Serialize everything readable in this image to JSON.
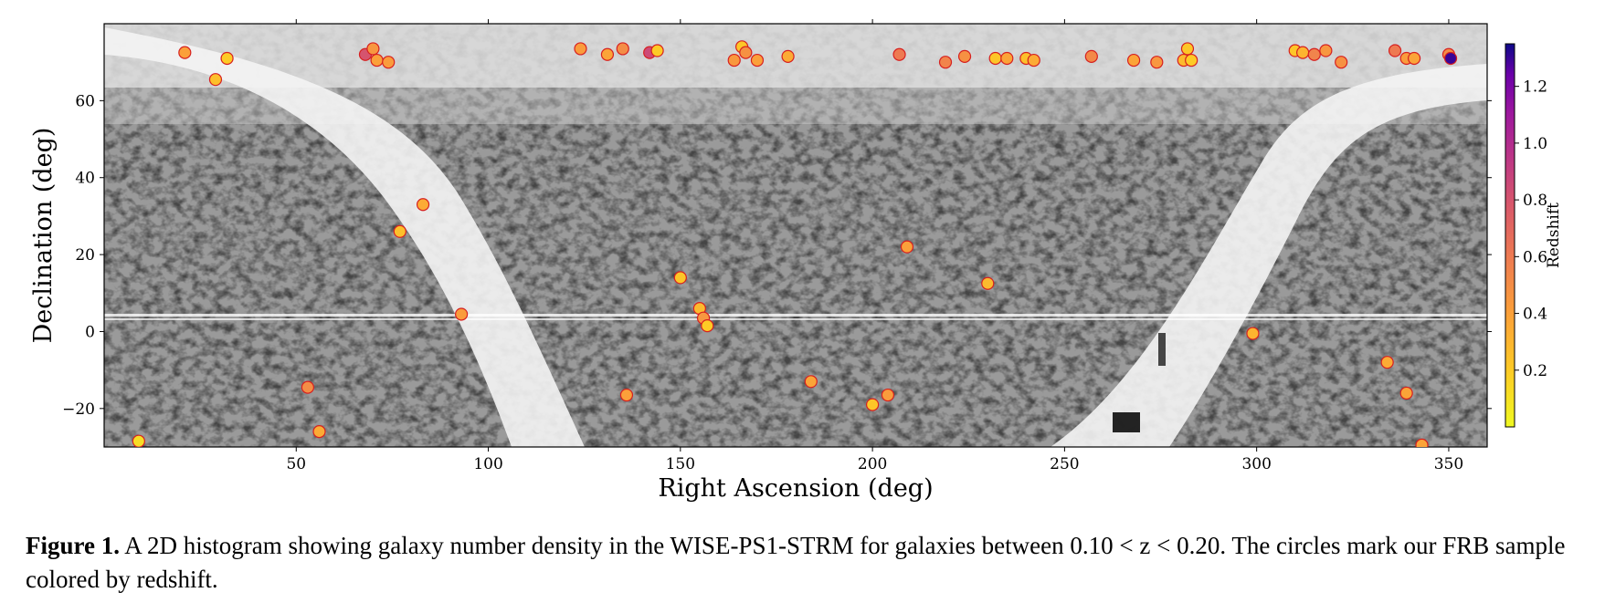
{
  "chart_data": {
    "type": "scatter",
    "title": "",
    "xlabel": "Right Ascension (deg)",
    "ylabel": "Declination (deg)",
    "xlim": [
      0,
      360
    ],
    "ylim": [
      -30,
      80
    ],
    "xticks": [
      50,
      100,
      150,
      200,
      250,
      300,
      350
    ],
    "xtick_labels": [
      "50",
      "100",
      "150",
      "200",
      "250",
      "300",
      "350"
    ],
    "yticks": [
      -20,
      0,
      20,
      40,
      60
    ],
    "ytick_labels": [
      "−20",
      "0",
      "20",
      "40",
      "60"
    ],
    "background": "2D histogram of galaxy number density (grayscale)",
    "colorbar": {
      "label": "Redshift",
      "range": [
        0.0,
        1.35
      ],
      "ticks": [
        0.2,
        0.4,
        0.6,
        0.8,
        1.0,
        1.2
      ],
      "tick_labels": [
        "0.2",
        "0.4",
        "0.6",
        "0.8",
        "1.0",
        "1.2"
      ],
      "colormap": "plasma_r"
    },
    "series": [
      {
        "name": "FRB sample",
        "points": [
          {
            "ra": 9,
            "dec": -28.5,
            "z": 0.12
          },
          {
            "ra": 21,
            "dec": 72.5,
            "z": 0.4
          },
          {
            "ra": 29,
            "dec": 65.5,
            "z": 0.25
          },
          {
            "ra": 32,
            "dec": 71,
            "z": 0.2
          },
          {
            "ra": 53,
            "dec": -14.5,
            "z": 0.5
          },
          {
            "ra": 56,
            "dec": -26,
            "z": 0.35
          },
          {
            "ra": 68,
            "dec": 72,
            "z": 0.8
          },
          {
            "ra": 70,
            "dec": 73.5,
            "z": 0.45
          },
          {
            "ra": 71,
            "dec": 70.5,
            "z": 0.4
          },
          {
            "ra": 74,
            "dec": 70,
            "z": 0.42
          },
          {
            "ra": 77,
            "dec": 26,
            "z": 0.25
          },
          {
            "ra": 83,
            "dec": 33,
            "z": 0.35
          },
          {
            "ra": 93,
            "dec": 4.5,
            "z": 0.42
          },
          {
            "ra": 124,
            "dec": 73.5,
            "z": 0.42
          },
          {
            "ra": 131,
            "dec": 72,
            "z": 0.38
          },
          {
            "ra": 135,
            "dec": 73.5,
            "z": 0.5
          },
          {
            "ra": 136,
            "dec": -16.5,
            "z": 0.4
          },
          {
            "ra": 142,
            "dec": 72.5,
            "z": 0.85
          },
          {
            "ra": 144,
            "dec": 73,
            "z": 0.2
          },
          {
            "ra": 150,
            "dec": 14,
            "z": 0.22
          },
          {
            "ra": 155,
            "dec": 6,
            "z": 0.28
          },
          {
            "ra": 156,
            "dec": 3.5,
            "z": 0.45
          },
          {
            "ra": 157,
            "dec": 1.5,
            "z": 0.2
          },
          {
            "ra": 164,
            "dec": 70.5,
            "z": 0.44
          },
          {
            "ra": 166,
            "dec": 74,
            "z": 0.22
          },
          {
            "ra": 167,
            "dec": 72.5,
            "z": 0.48
          },
          {
            "ra": 170,
            "dec": 70.5,
            "z": 0.4
          },
          {
            "ra": 178,
            "dec": 71.5,
            "z": 0.35
          },
          {
            "ra": 184,
            "dec": -13,
            "z": 0.38
          },
          {
            "ra": 200,
            "dec": -19,
            "z": 0.22
          },
          {
            "ra": 204,
            "dec": -16.5,
            "z": 0.42
          },
          {
            "ra": 207,
            "dec": 72,
            "z": 0.6
          },
          {
            "ra": 209,
            "dec": 22,
            "z": 0.4
          },
          {
            "ra": 219,
            "dec": 70,
            "z": 0.55
          },
          {
            "ra": 224,
            "dec": 71.5,
            "z": 0.48
          },
          {
            "ra": 230,
            "dec": 12.5,
            "z": 0.28
          },
          {
            "ra": 232,
            "dec": 71,
            "z": 0.22
          },
          {
            "ra": 235,
            "dec": 71,
            "z": 0.38
          },
          {
            "ra": 240,
            "dec": 71,
            "z": 0.25
          },
          {
            "ra": 242,
            "dec": 70.5,
            "z": 0.35
          },
          {
            "ra": 257,
            "dec": 71.5,
            "z": 0.52
          },
          {
            "ra": 268,
            "dec": 70.5,
            "z": 0.38
          },
          {
            "ra": 274,
            "dec": 70,
            "z": 0.45
          },
          {
            "ra": 281,
            "dec": 70.5,
            "z": 0.28
          },
          {
            "ra": 282,
            "dec": 73.5,
            "z": 0.22
          },
          {
            "ra": 283,
            "dec": 70.5,
            "z": 0.2
          },
          {
            "ra": 299,
            "dec": -0.5,
            "z": 0.3
          },
          {
            "ra": 310,
            "dec": 73,
            "z": 0.22
          },
          {
            "ra": 312,
            "dec": 72.5,
            "z": 0.3
          },
          {
            "ra": 315,
            "dec": 72,
            "z": 0.55
          },
          {
            "ra": 318,
            "dec": 73,
            "z": 0.45
          },
          {
            "ra": 322,
            "dec": 70,
            "z": 0.48
          },
          {
            "ra": 334,
            "dec": -8,
            "z": 0.35
          },
          {
            "ra": 336,
            "dec": 73,
            "z": 0.6
          },
          {
            "ra": 339,
            "dec": 71,
            "z": 0.42
          },
          {
            "ra": 339,
            "dec": -16,
            "z": 0.38
          },
          {
            "ra": 341,
            "dec": 71,
            "z": 0.38
          },
          {
            "ra": 343,
            "dec": -29.5,
            "z": 0.38
          },
          {
            "ra": 350,
            "dec": 72,
            "z": 0.5
          },
          {
            "ra": 350.5,
            "dec": 71,
            "z": 1.3
          }
        ]
      }
    ]
  },
  "caption": {
    "label": "Figure 1.",
    "text": "A 2D histogram showing galaxy number density in the WISE-PS1-STRM for galaxies between 0.10 < z < 0.20. The circles mark our FRB sample colored by redshift."
  }
}
